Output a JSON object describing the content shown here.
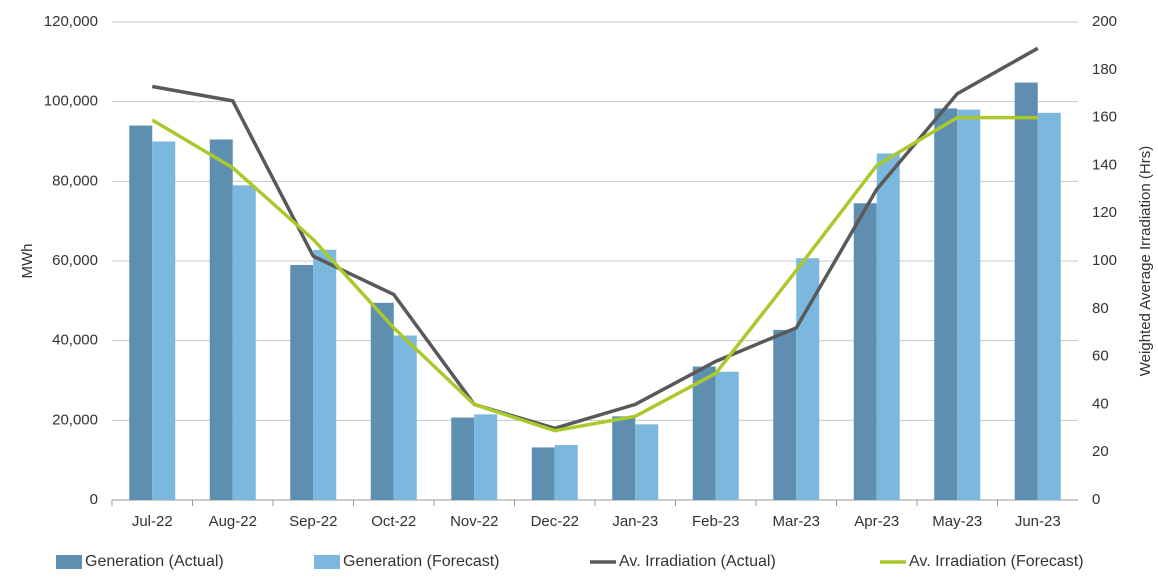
{
  "chart_data": {
    "type": "bar_line",
    "ylabel": "MWh",
    "y2label": "Weighted Average Irradiation (Hrs)",
    "categories": [
      "Jul-22",
      "Aug-22",
      "Sep-22",
      "Oct-22",
      "Nov-22",
      "Dec-22",
      "Jan-23",
      "Feb-23",
      "Mar-23",
      "Apr-23",
      "May-23",
      "Jun-23"
    ],
    "series": [
      {
        "name": "Generation (Actual)",
        "type": "bar",
        "color": "#5f8fb0",
        "values": [
          94000,
          90500,
          59000,
          49500,
          20700,
          13200,
          21000,
          33500,
          42700,
          74500,
          98300,
          104800
        ]
      },
      {
        "name": "Generation (Forecast)",
        "type": "bar",
        "color": "#7cb8dd",
        "values": [
          90000,
          79000,
          62800,
          41300,
          21500,
          13800,
          19000,
          32200,
          60700,
          87000,
          98000,
          97200
        ]
      },
      {
        "name": "Av. Irradiation (Actual)",
        "type": "line",
        "axis": "y2",
        "color": "#595959",
        "values": [
          173,
          167,
          102,
          86,
          40,
          30,
          40,
          58,
          72,
          130,
          170,
          189
        ]
      },
      {
        "name": "Av. Irradiation (Forecast)",
        "type": "line",
        "axis": "y2",
        "color": "#a9c92c",
        "values": [
          159,
          139,
          109,
          72,
          40,
          29,
          35,
          53,
          96,
          140,
          160,
          160
        ]
      }
    ],
    "ylim": [
      0,
      120000
    ],
    "yticks": [
      0,
      {
        "value": 20000,
        "label": "20,000"
      },
      {
        "value": 40000,
        "label": "40,000"
      },
      {
        "value": 60000,
        "label": "60,000"
      },
      {
        "value": 80000,
        "label": "80,000"
      },
      {
        "value": 100000,
        "label": "100,000"
      },
      {
        "value": 120000,
        "label": "120,000"
      }
    ],
    "y2lim": [
      0,
      200
    ],
    "y2ticks": [
      0,
      20,
      40,
      60,
      80,
      100,
      120,
      140,
      160,
      180,
      200
    ],
    "grid": true,
    "legend": "bottom"
  }
}
